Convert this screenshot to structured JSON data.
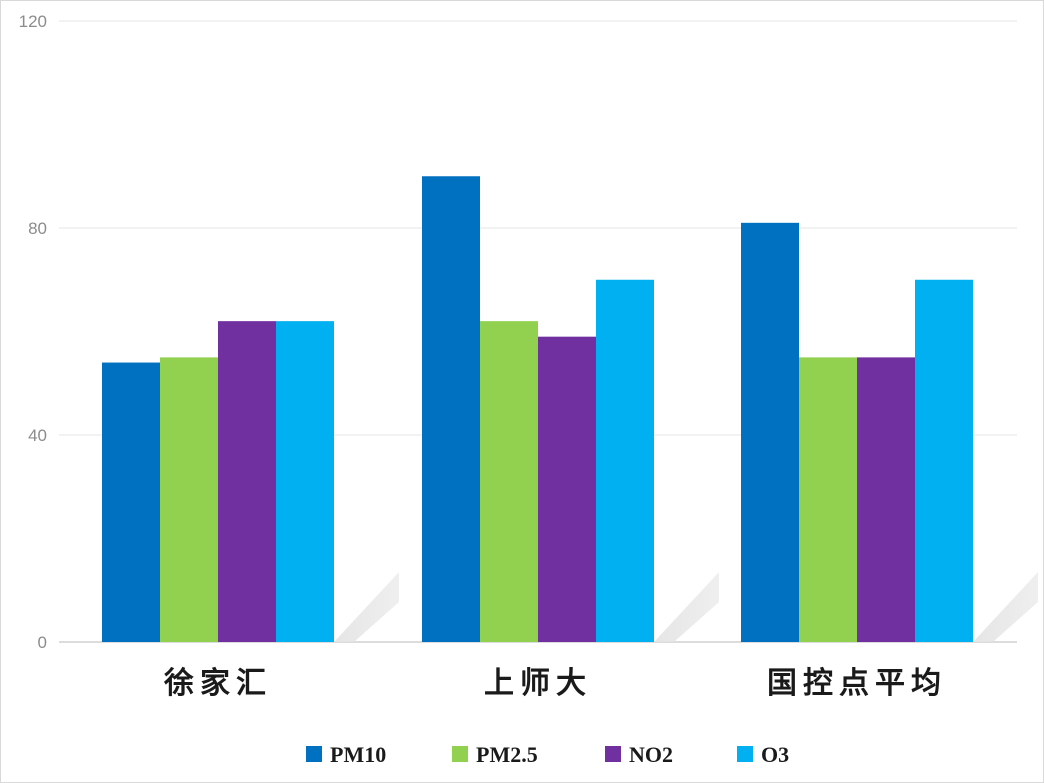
{
  "chart_data": {
    "type": "bar",
    "categories": [
      "徐家汇",
      "上师大",
      "国控点平均"
    ],
    "series": [
      {
        "name": "PM10",
        "color": "#0070C0",
        "values": [
          54,
          90,
          81
        ]
      },
      {
        "name": "PM2.5",
        "color": "#92D050",
        "values": [
          55,
          62,
          55
        ]
      },
      {
        "name": "NO2",
        "color": "#7030A0",
        "values": [
          62,
          59,
          55
        ]
      },
      {
        "name": "O3",
        "color": "#00B0F0",
        "values": [
          62,
          70,
          70
        ]
      }
    ],
    "ylim": [
      0,
      120
    ],
    "yticks": [
      0,
      40,
      80,
      120
    ],
    "grid": true,
    "legend_position": "bottom"
  }
}
